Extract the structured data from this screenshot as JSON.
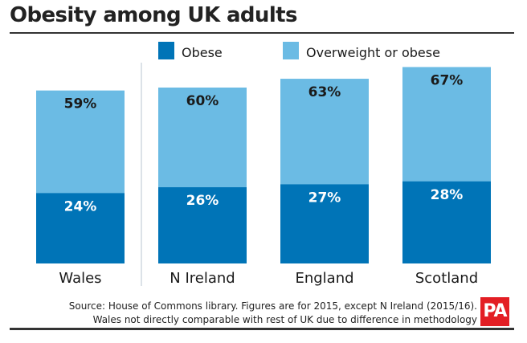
{
  "title": "Obesity among UK adults",
  "colors": {
    "obese": "#0074b7",
    "overweight_or_obese": "#6bbbe4",
    "value_label": "#ffffff",
    "top_label": "#1a1a1a",
    "logo": "#e31e24"
  },
  "source": {
    "line1": "Source: House of Commons library. Figures are for 2015, except N Ireland (2015/16).",
    "line2": "Wales not directly comparable with rest of UK due to difference in methodology"
  },
  "logo_text": "PA",
  "chart_data": {
    "type": "bar",
    "stacking": "overlapping",
    "categories": [
      "Wales",
      "N Ireland",
      "England",
      "Scotland"
    ],
    "series": [
      {
        "name": "Obese",
        "values": [
          24,
          26,
          27,
          28
        ],
        "labels": [
          "24%",
          "26%",
          "27%",
          "28%"
        ]
      },
      {
        "name": "Overweight or obese",
        "values": [
          59,
          60,
          63,
          67
        ],
        "labels": [
          "59%",
          "60%",
          "63%",
          "67%"
        ]
      }
    ],
    "ylim": [
      0,
      100
    ],
    "grid": false,
    "legend": "top",
    "separator_after_category": "Wales"
  }
}
